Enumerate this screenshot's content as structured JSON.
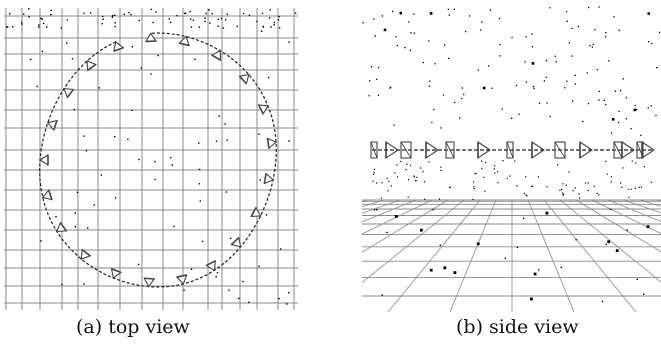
{
  "figure": {
    "captions": {
      "top_view": "(a) top view",
      "side_view": "(b) side view"
    }
  },
  "colors": {
    "grid": "#8a8a8a",
    "trajectory": "#222222",
    "camera": "#444444",
    "points": "#000000",
    "background": "#ffffff"
  }
}
